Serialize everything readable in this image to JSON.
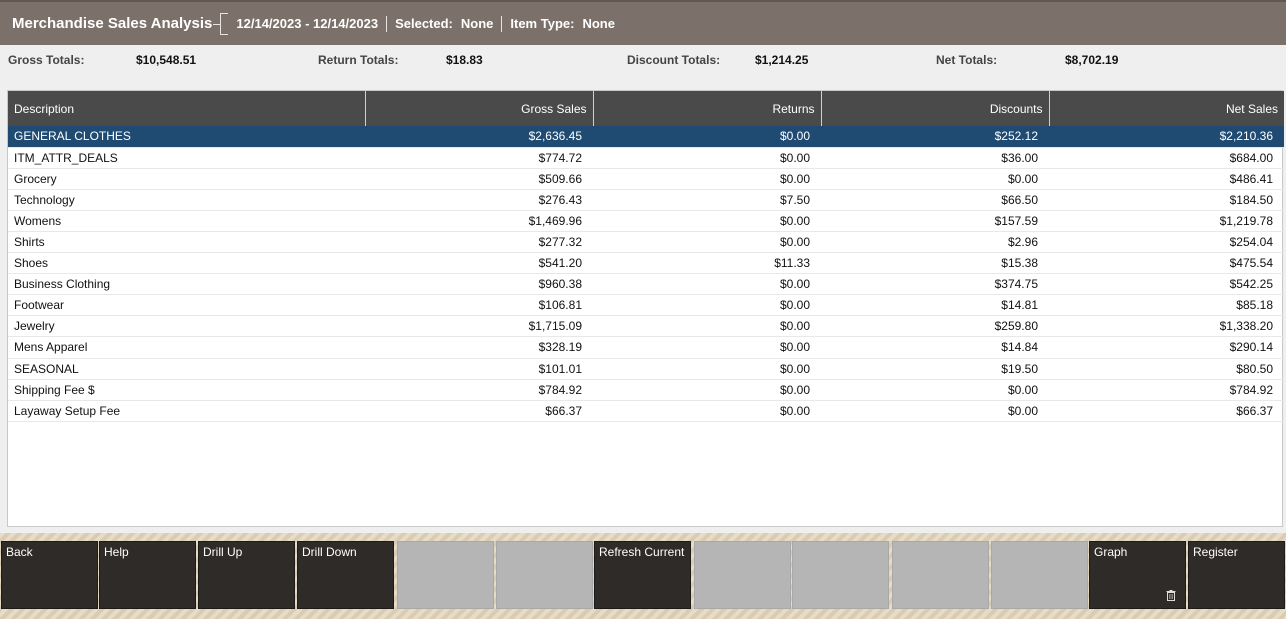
{
  "header": {
    "title": "Merchandise Sales Analysis",
    "date_range": "12/14/2023 - 12/14/2023",
    "selected_label": "Selected:",
    "selected_value": "None",
    "item_type_label": "Item Type:",
    "item_type_value": "None"
  },
  "totals": {
    "gross_label": "Gross Totals:",
    "gross_value": "$10,548.51",
    "return_label": "Return Totals:",
    "return_value": "$18.83",
    "discount_label": "Discount Totals:",
    "discount_value": "$1,214.25",
    "net_label": "Net Totals:",
    "net_value": "$8,702.19"
  },
  "table": {
    "columns": [
      "Description",
      "Gross Sales",
      "Returns",
      "Discounts",
      "Net Sales"
    ],
    "rows": [
      [
        "GENERAL CLOTHES",
        "$2,636.45",
        "$0.00",
        "$252.12",
        "$2,210.36"
      ],
      [
        "ITM_ATTR_DEALS",
        "$774.72",
        "$0.00",
        "$36.00",
        "$684.00"
      ],
      [
        "Grocery",
        "$509.66",
        "$0.00",
        "$0.00",
        "$486.41"
      ],
      [
        "Technology",
        "$276.43",
        "$7.50",
        "$66.50",
        "$184.50"
      ],
      [
        "Womens",
        "$1,469.96",
        "$0.00",
        "$157.59",
        "$1,219.78"
      ],
      [
        "Shirts",
        "$277.32",
        "$0.00",
        "$2.96",
        "$254.04"
      ],
      [
        "Shoes",
        "$541.20",
        "$11.33",
        "$15.38",
        "$475.54"
      ],
      [
        "Business Clothing",
        "$960.38",
        "$0.00",
        "$374.75",
        "$542.25"
      ],
      [
        "Footwear",
        "$106.81",
        "$0.00",
        "$14.81",
        "$85.18"
      ],
      [
        "Jewelry",
        "$1,715.09",
        "$0.00",
        "$259.80",
        "$1,338.20"
      ],
      [
        "Mens Apparel",
        "$328.19",
        "$0.00",
        "$14.84",
        "$290.14"
      ],
      [
        "SEASONAL",
        "$101.01",
        "$0.00",
        "$19.50",
        "$80.50"
      ],
      [
        "Shipping Fee $",
        "$784.92",
        "$0.00",
        "$0.00",
        "$784.92"
      ],
      [
        "Layaway Setup Fee",
        "$66.37",
        "$0.00",
        "$0.00",
        "$66.37"
      ]
    ],
    "selected_row": 0
  },
  "buttons": [
    {
      "label": "Back",
      "enabled": true
    },
    {
      "label": "Help",
      "enabled": true
    },
    {
      "label": "Drill Up",
      "enabled": true
    },
    {
      "label": "Drill Down",
      "enabled": true
    },
    {
      "label": "",
      "enabled": false
    },
    {
      "label": "",
      "enabled": false
    },
    {
      "label": "Refresh Current",
      "enabled": true
    },
    {
      "label": "",
      "enabled": false
    },
    {
      "label": "",
      "enabled": false
    },
    {
      "label": "",
      "enabled": false
    },
    {
      "label": "",
      "enabled": false
    },
    {
      "label": "Graph",
      "enabled": true,
      "icon": "trash-icon"
    },
    {
      "label": "Register",
      "enabled": true
    }
  ]
}
